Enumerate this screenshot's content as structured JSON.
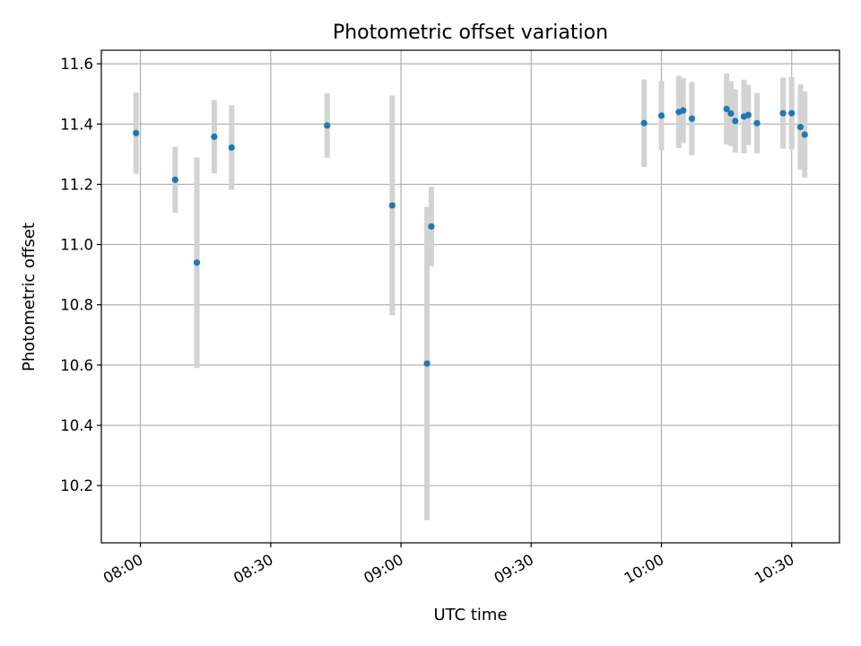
{
  "chart_data": {
    "type": "scatter",
    "title": "Photometric offset variation",
    "xlabel": "UTC time",
    "ylabel": "Photometric offset",
    "x_ticks": [
      "08:00",
      "08:30",
      "09:00",
      "09:30",
      "10:00",
      "10:30"
    ],
    "y_ticks": [
      "10.2",
      "10.4",
      "10.6",
      "10.8",
      "11.0",
      "11.2",
      "11.4",
      "11.6"
    ],
    "xlim": [
      "07:51",
      "10:41"
    ],
    "ylim": [
      10.01,
      11.645
    ],
    "grid": true,
    "colors": {
      "marker": "#1f77b4",
      "errorbar": "#d3d3d3"
    },
    "points": [
      {
        "x": "07:59",
        "y": 11.37,
        "err": 0.135
      },
      {
        "x": "08:08",
        "y": 11.215,
        "err": 0.11
      },
      {
        "x": "08:13",
        "y": 10.94,
        "err": 0.35
      },
      {
        "x": "08:17",
        "y": 11.358,
        "err": 0.122
      },
      {
        "x": "08:21",
        "y": 11.322,
        "err": 0.14
      },
      {
        "x": "08:43",
        "y": 11.395,
        "err": 0.107
      },
      {
        "x": "08:58",
        "y": 11.13,
        "err": 0.365
      },
      {
        "x": "09:06",
        "y": 10.605,
        "err": 0.52
      },
      {
        "x": "09:07",
        "y": 11.06,
        "err": 0.132
      },
      {
        "x": "09:56",
        "y": 11.403,
        "err": 0.145
      },
      {
        "x": "10:00",
        "y": 11.428,
        "err": 0.115
      },
      {
        "x": "10:04",
        "y": 11.44,
        "err": 0.12
      },
      {
        "x": "10:05",
        "y": 11.445,
        "err": 0.108
      },
      {
        "x": "10:07",
        "y": 11.418,
        "err": 0.122
      },
      {
        "x": "10:15",
        "y": 11.45,
        "err": 0.118
      },
      {
        "x": "10:16",
        "y": 11.435,
        "err": 0.108
      },
      {
        "x": "10:17",
        "y": 11.41,
        "err": 0.105
      },
      {
        "x": "10:19",
        "y": 11.425,
        "err": 0.122
      },
      {
        "x": "10:20",
        "y": 11.43,
        "err": 0.1
      },
      {
        "x": "10:22",
        "y": 11.403,
        "err": 0.1
      },
      {
        "x": "10:28",
        "y": 11.436,
        "err": 0.118
      },
      {
        "x": "10:30",
        "y": 11.436,
        "err": 0.12
      },
      {
        "x": "10:32",
        "y": 11.39,
        "err": 0.142
      },
      {
        "x": "10:33",
        "y": 11.365,
        "err": 0.143
      }
    ]
  }
}
